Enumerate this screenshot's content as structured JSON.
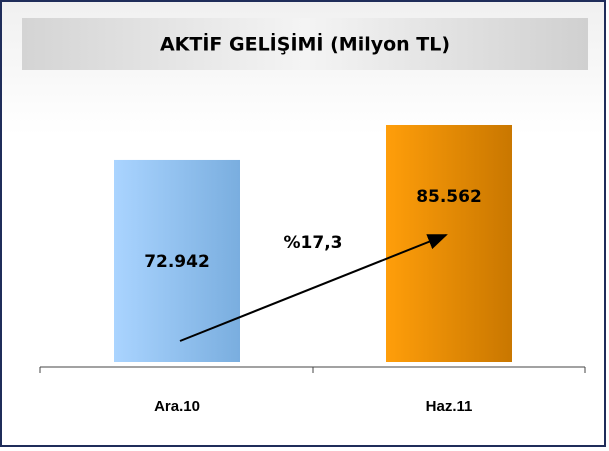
{
  "chart_data": {
    "type": "bar",
    "title": "AKTİF GELİŞİMİ (Milyon TL)",
    "categories": [
      "Ara.10",
      "Haz.11"
    ],
    "values": [
      72942,
      85562
    ],
    "value_labels": [
      "72.942",
      "85.562"
    ],
    "colors": [
      "#8fbfee",
      "#f39400"
    ],
    "ylim": [
      0,
      100000
    ],
    "annotations": [
      "%17,3"
    ]
  }
}
